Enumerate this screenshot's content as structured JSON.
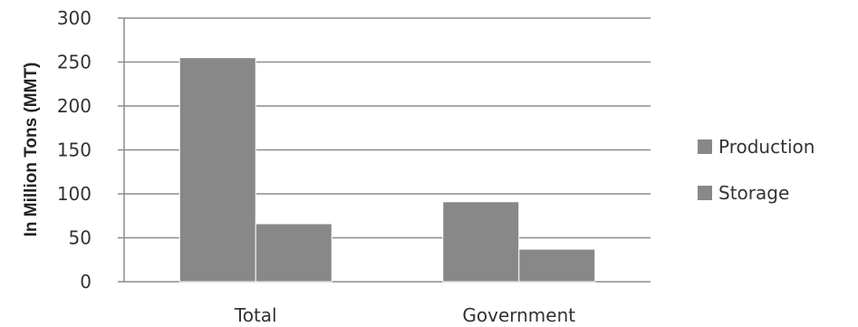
{
  "chart_data": {
    "type": "bar",
    "categories": [
      "Total",
      "Government"
    ],
    "series": [
      {
        "name": "Production",
        "values": [
          255,
          91
        ],
        "color": "#888888"
      },
      {
        "name": "Storage",
        "values": [
          66,
          37
        ],
        "color": "#888888"
      }
    ],
    "ylabel": "In Million Tons (MMT)",
    "ylim": [
      0,
      300
    ],
    "yticks": [
      0,
      50,
      100,
      150,
      200,
      250,
      300
    ],
    "grid": true,
    "legend_position": "right"
  }
}
